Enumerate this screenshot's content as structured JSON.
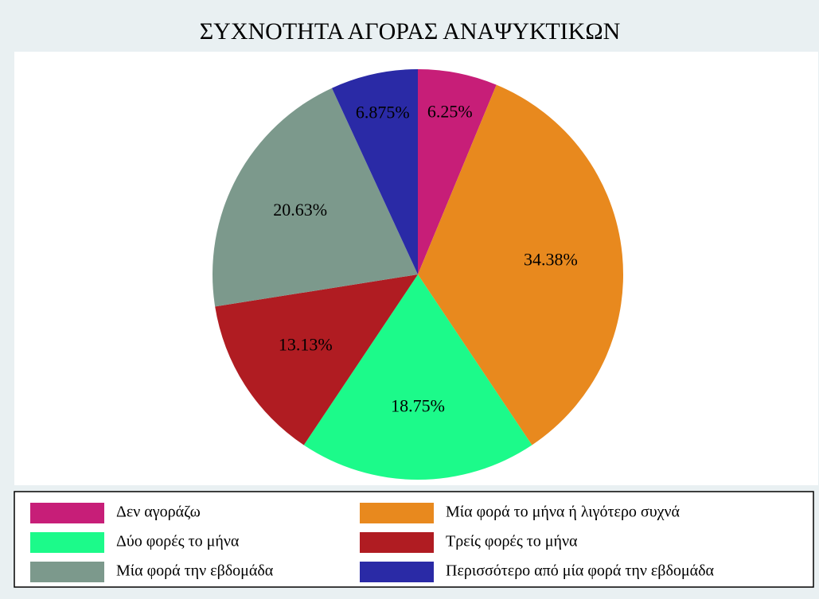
{
  "chart_data": {
    "type": "pie",
    "title": "ΣΥΧΝΟΤΗΤΑ ΑΓΟΡΑΣ ΑΝΑΨΥΚΤΙΚΩΝ",
    "categories": [
      "Δεν αγοράζω",
      "Μία φορά το μήνα ή λιγότερο συχνά",
      "Δύο φορές το μήνα",
      "Τρείς φορές το μήνα",
      "Μία φορά την εβδομάδα",
      "Περισσότερο από μία φορά την εβδομάδα"
    ],
    "values": [
      6.25,
      34.38,
      18.75,
      13.13,
      20.63,
      6.875
    ],
    "value_labels": [
      "6.25%",
      "34.38%",
      "18.75%",
      "13.13%",
      "20.63%",
      "6.875%"
    ],
    "colors": [
      "#c71e78",
      "#e8891e",
      "#1cfa8a",
      "#b01c22",
      "#7c998c",
      "#2a2aa6"
    ],
    "legend": "bottom"
  }
}
